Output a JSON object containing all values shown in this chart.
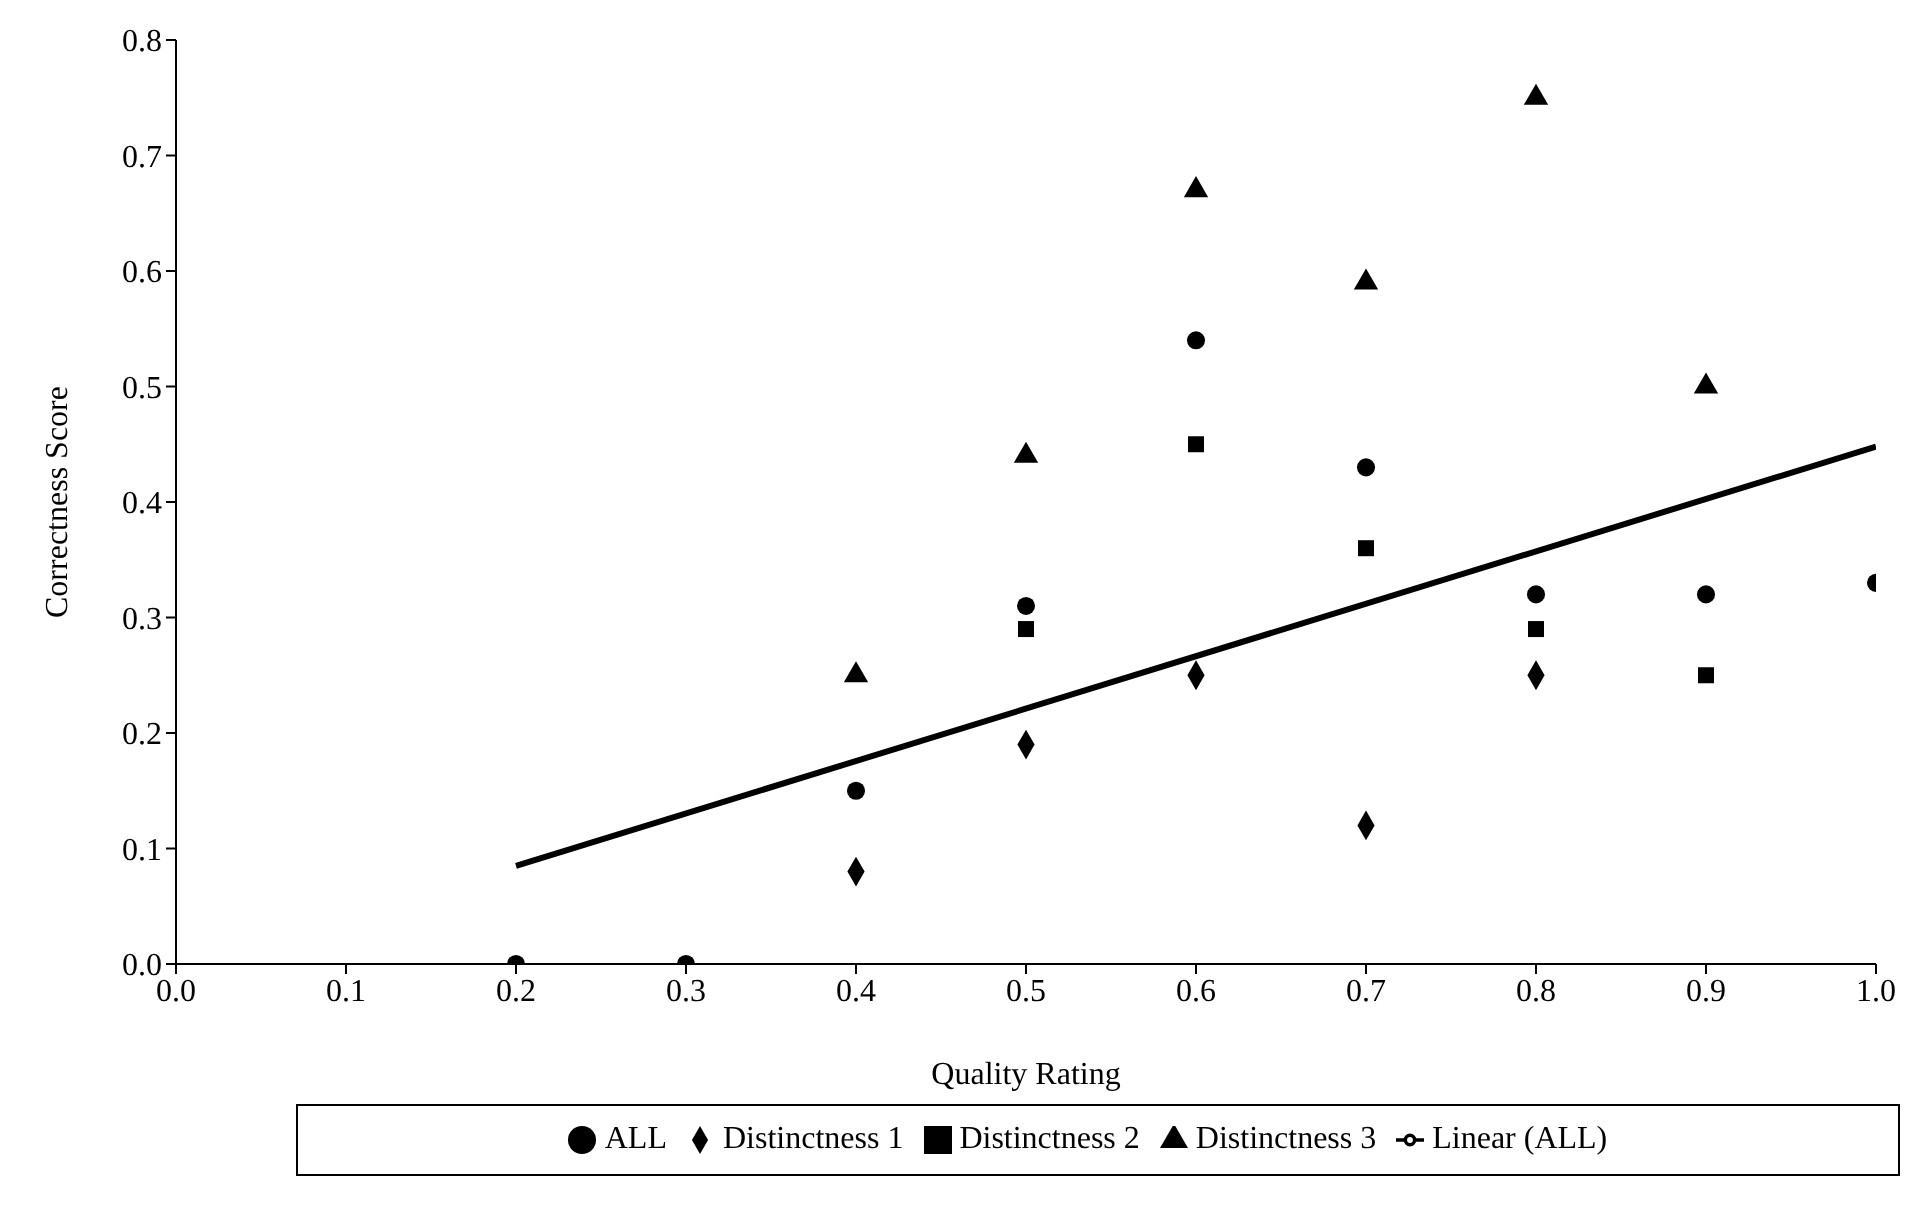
{
  "chart_data": {
    "type": "scatter",
    "xlabel": "Quality Rating",
    "ylabel": "Correctness Score",
    "xlim": [
      0,
      1
    ],
    "ylim": [
      0,
      0.8
    ],
    "xticks": [
      {
        "value": 0,
        "label": "0.0"
      },
      {
        "value": 0.1,
        "label": "0.1"
      },
      {
        "value": 0.2,
        "label": "0.2"
      },
      {
        "value": 0.3,
        "label": "0.3"
      },
      {
        "value": 0.4,
        "label": "0.4"
      },
      {
        "value": 0.5,
        "label": "0.5"
      },
      {
        "value": 0.6,
        "label": "0.6"
      },
      {
        "value": 0.7,
        "label": "0.7"
      },
      {
        "value": 0.8,
        "label": "0.8"
      },
      {
        "value": 0.9,
        "label": "0.9"
      },
      {
        "value": 1,
        "label": "1.0"
      }
    ],
    "yticks": [
      {
        "value": 0,
        "label": "0.0"
      },
      {
        "value": 0.1,
        "label": "0.1"
      },
      {
        "value": 0.2,
        "label": "0.2"
      },
      {
        "value": 0.3,
        "label": "0.3"
      },
      {
        "value": 0.4,
        "label": "0.4"
      },
      {
        "value": 0.5,
        "label": "0.5"
      },
      {
        "value": 0.6,
        "label": "0.6"
      },
      {
        "value": 0.7,
        "label": "0.7"
      },
      {
        "value": 0.8,
        "label": "0.8"
      }
    ],
    "grid": false,
    "legend": "bottom",
    "series": [
      {
        "name": "ALL",
        "color": "#000000",
        "marker": "circle",
        "x": [
          0.2,
          0.3,
          0.4,
          0.5,
          0.6,
          0.7,
          0.8,
          0.9,
          1.0
        ],
        "values": [
          0,
          0,
          0.15,
          0.31,
          0.54,
          0.43,
          0.32,
          0.32,
          0.33
        ]
      },
      {
        "name": "Distinctness 1",
        "color": "#000000",
        "marker": "diamond",
        "x": [
          0.4,
          0.5,
          0.6,
          0.7,
          0.8
        ],
        "values": [
          0.08,
          0.19,
          0.25,
          0.12,
          0.25
        ]
      },
      {
        "name": "Distinctness 2",
        "color": "#000000",
        "marker": "square",
        "x": [
          0.5,
          0.6,
          0.7,
          0.8,
          0.9
        ],
        "values": [
          0.29,
          0.45,
          0.36,
          0.29,
          0.25
        ]
      },
      {
        "name": "Distinctness 3",
        "color": "#000000",
        "marker": "triangle",
        "x": [
          0.4,
          0.5,
          0.6,
          0.7,
          0.8,
          0.9
        ],
        "values": [
          0.25,
          0.44,
          0.67,
          0.59,
          0.75,
          0.5
        ]
      },
      {
        "name": "Linear (ALL)",
        "type": "line",
        "color": "#000000",
        "line_style": "solid",
        "x": [
          0.2,
          1.0
        ],
        "values": [
          0.085,
          0.448
        ]
      }
    ]
  }
}
